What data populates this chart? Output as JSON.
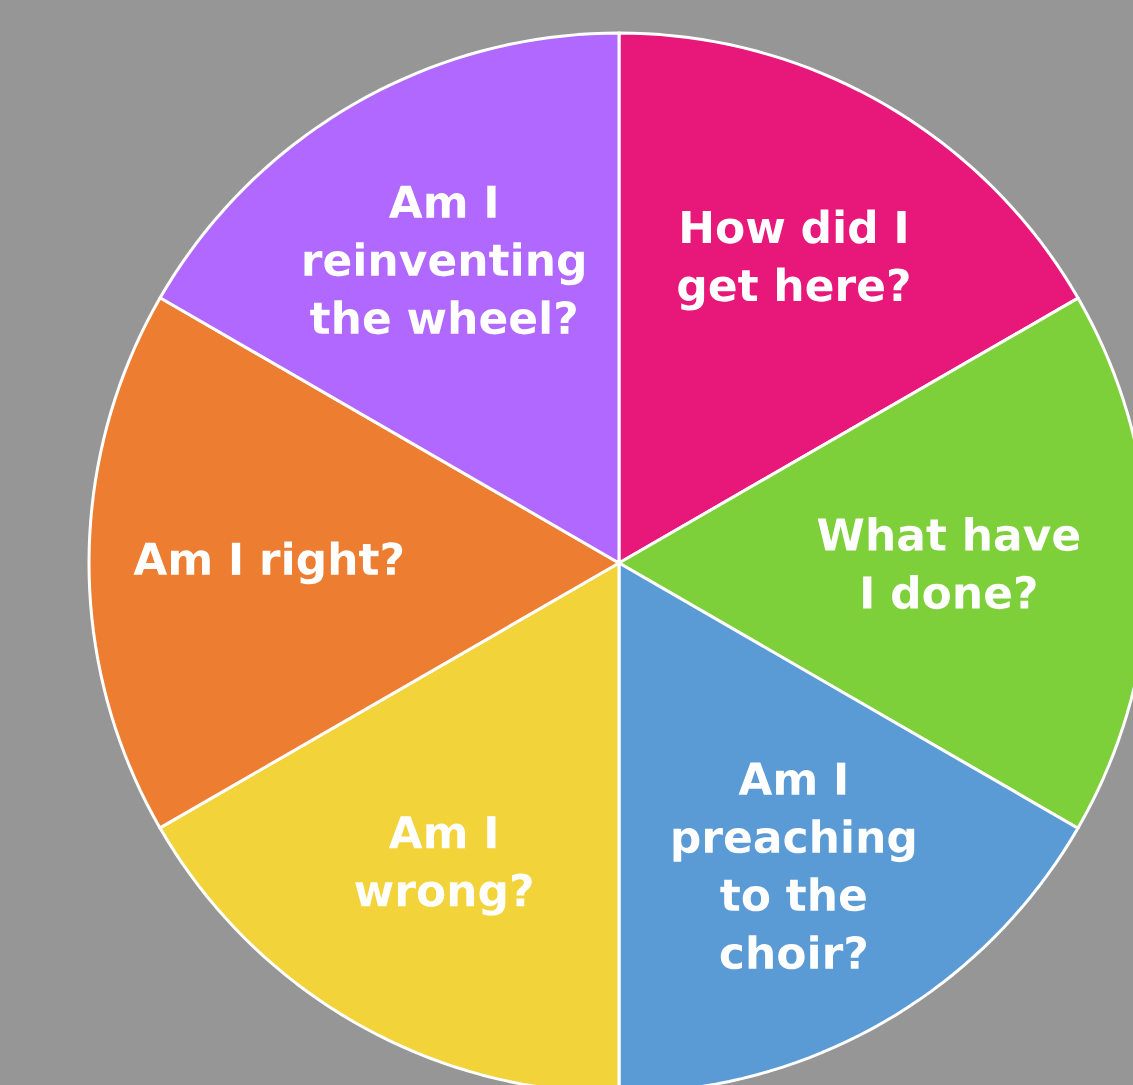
{
  "chart_data": {
    "type": "pie",
    "categories": [
      "How did I get here?",
      "What have I done?",
      "Am I preaching to the choir?",
      "Am I wrong?",
      "Am I right?",
      "Am I reinventing the wheel?"
    ],
    "values": [
      16.67,
      16.67,
      16.66,
      16.67,
      16.67,
      16.66
    ],
    "colors": [
      "#e8177a",
      "#7ed03b",
      "#5b9bd5",
      "#f2d33a",
      "#ed7d31",
      "#b068ff"
    ]
  }
}
